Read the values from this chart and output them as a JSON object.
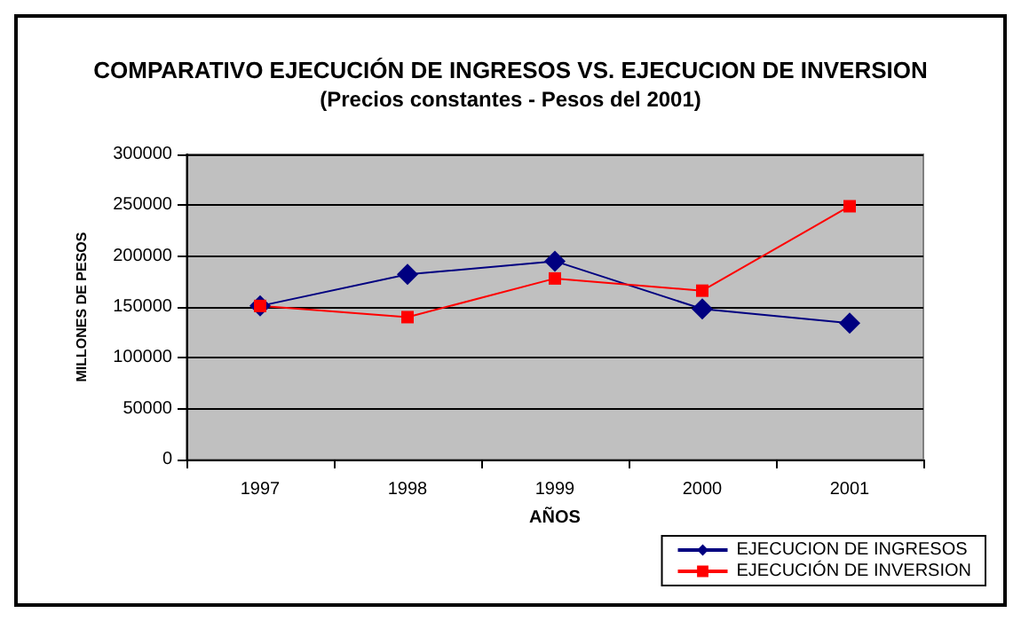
{
  "chart_data": {
    "type": "line",
    "title": "COMPARATIVO EJECUCIÓN DE INGRESOS VS. EJECUCION DE INVERSION",
    "subtitle": "(Precios constantes - Pesos del 2001)",
    "xlabel": "AÑOS",
    "ylabel": "MILLONES DE PESOS",
    "categories": [
      "1997",
      "1998",
      "1999",
      "2000",
      "2001"
    ],
    "series": [
      {
        "name": "EJECUCION DE INGRESOS",
        "color": "#000080",
        "marker": "diamond",
        "values": [
          151000,
          182000,
          195000,
          148000,
          134000
        ]
      },
      {
        "name": "EJECUCIÓN DE INVERSION",
        "color": "#ff0000",
        "marker": "square",
        "values": [
          151000,
          140000,
          178000,
          166000,
          249000
        ]
      }
    ],
    "ylim": [
      0,
      300000
    ],
    "yticks": [
      0,
      50000,
      100000,
      150000,
      200000,
      250000,
      300000
    ],
    "grid": "y",
    "legend": "bottom right"
  }
}
